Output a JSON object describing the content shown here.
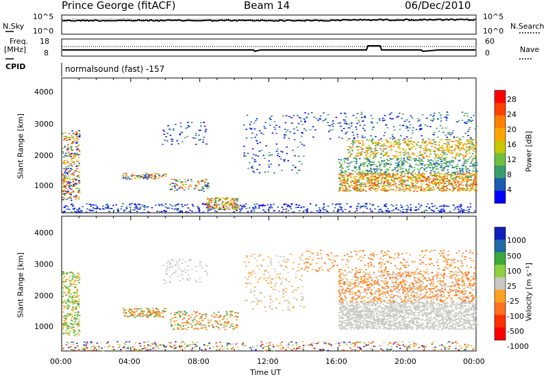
{
  "header": {
    "station": "Prince George (fitACF)",
    "beam": "Beam 14",
    "date": "06/Dec/2010"
  },
  "top_panels": {
    "nsky_label": "N.Sky",
    "nsearch_label": "N.Search",
    "left_ticks_top": [
      "10^5",
      "10^0"
    ],
    "right_ticks_top": [
      "10^5",
      "10^0"
    ],
    "freq_label": "Freq.",
    "freq_unit": "[MHz]",
    "freq_ticks": [
      "18",
      "8"
    ],
    "nave_label": "Nave",
    "nave_ticks": [
      "60",
      "0"
    ],
    "cpid_label": "CPID",
    "cpid_text": "normalsound (fast) -157"
  },
  "axes": {
    "y_label": "Slant Range [km]",
    "y_ticks": [
      "4000",
      "3000",
      "2000",
      "1000"
    ],
    "x_label": "Time UT",
    "x_ticks": [
      "00:00",
      "04:00",
      "08:00",
      "12:00",
      "16:00",
      "20:00",
      "00:00"
    ]
  },
  "power_colorbar": {
    "label": "Power [dB]",
    "ticks": [
      "28",
      "24",
      "20",
      "16",
      "12",
      "8",
      "4"
    ],
    "colors": [
      "#ff0000",
      "#ff4000",
      "#ff8000",
      "#ffa500",
      "#c8c800",
      "#70c040",
      "#3a9e6a",
      "#1a5cb0",
      "#0000ff"
    ]
  },
  "velocity_colorbar": {
    "label": "Velocity [m s⁻¹]",
    "ticks": [
      "1000",
      "500",
      "100",
      "25",
      "-25",
      "-100",
      "-500",
      "-1000"
    ],
    "colors": [
      "#1020c0",
      "#206aa8",
      "#3aaa3a",
      "#90d040",
      "#c8c8c0",
      "#ffa020",
      "#ff7020",
      "#ff3000",
      "#ff0000"
    ]
  },
  "chart_data": [
    {
      "type": "heatmap",
      "title": "Power",
      "xlabel": "Time UT",
      "ylabel": "Slant Range [km]",
      "xlim": [
        0,
        24
      ],
      "ylim": [
        180,
        4600
      ],
      "colorbar": "Power [dB]",
      "clim": [
        0,
        32
      ],
      "features": [
        {
          "t_start": 0.0,
          "t_end": 1.0,
          "r_start": 600,
          "r_end": 2900,
          "db": 14
        },
        {
          "t_start": 3.5,
          "t_end": 6.0,
          "r_start": 1300,
          "r_end": 1500,
          "db": 12
        },
        {
          "t_start": 8.3,
          "t_end": 10.2,
          "r_start": 300,
          "r_end": 700,
          "db": 22
        },
        {
          "t_start": 16.0,
          "t_end": 24.0,
          "r_start": 900,
          "r_end": 2600,
          "db": 20
        }
      ]
    },
    {
      "type": "heatmap",
      "title": "Velocity",
      "xlabel": "Time UT",
      "ylabel": "Slant Range [km]",
      "xlim": [
        0,
        24
      ],
      "ylim": [
        180,
        4600
      ],
      "colorbar": "Velocity [m s⁻¹]",
      "clim": [
        -1000,
        1000
      ],
      "features": [
        {
          "t_start": 0.0,
          "t_end": 1.0,
          "r_start": 700,
          "r_end": 2800,
          "v": 100
        },
        {
          "t_start": 3.5,
          "t_end": 6.0,
          "r_start": 1300,
          "r_end": 1600,
          "v": -100
        },
        {
          "t_start": 16.0,
          "t_end": 24.0,
          "r_start": 1800,
          "r_end": 2800,
          "v": -100
        },
        {
          "t_start": 16.0,
          "t_end": 24.0,
          "r_start": 900,
          "r_end": 1800,
          "v": 0
        }
      ]
    }
  ]
}
